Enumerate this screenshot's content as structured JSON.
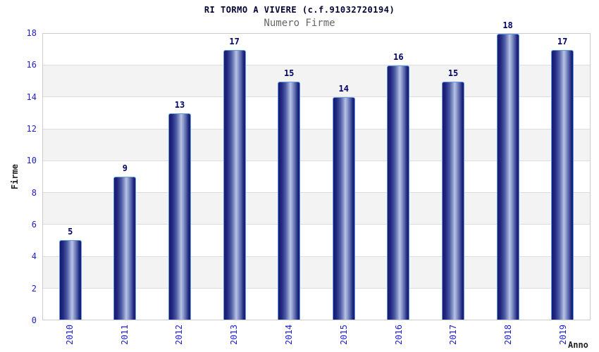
{
  "header": {
    "title": "RI TORMO A VIVERE (c.f.91032720194)",
    "subtitle": "Numero Firme"
  },
  "chart_data": {
    "type": "bar",
    "title": "RI TORMO A VIVERE (c.f.91032720194)",
    "subtitle": "Numero Firme",
    "xlabel": "Anno",
    "ylabel": "Firme",
    "categories": [
      "2010",
      "2011",
      "2012",
      "2013",
      "2014",
      "2015",
      "2016",
      "2017",
      "2018",
      "2019"
    ],
    "values": [
      5,
      9,
      13,
      17,
      15,
      14,
      16,
      15,
      18,
      17
    ],
    "ylim": [
      0,
      18
    ],
    "y_ticks": [
      0,
      2,
      4,
      6,
      8,
      10,
      12,
      14,
      16,
      18
    ],
    "grid": "horizontal-bands-alternating",
    "legend": "none",
    "colors": {
      "bar_dark": "#191970",
      "bar_highlight": "#bac3e5",
      "bar_border": "#5d9ae0",
      "tick_label": "#2020cc",
      "value_label": "#000066",
      "title": "#000033",
      "subtitle": "#666666",
      "band_alt": "#f3f3f3",
      "gridline": "#dddddd",
      "plot_border": "#cccccc"
    }
  }
}
